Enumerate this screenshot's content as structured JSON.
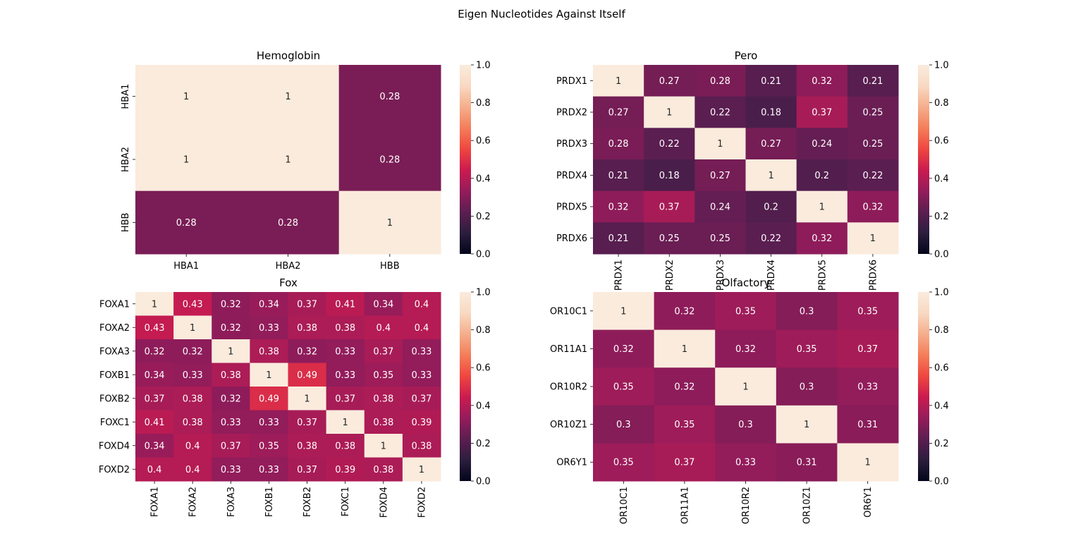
{
  "figure": {
    "suptitle": "Eigen Nucleotides Against Itself",
    "colormap": "rocket",
    "colormap_stops": [
      "#03051a",
      "#2c1e3e",
      "#5c1e51",
      "#951c5b",
      "#cb1b4f",
      "#ef4740",
      "#f47e5a",
      "#f5ae8c",
      "#f8d9c2",
      "#faebdd"
    ]
  },
  "chart_data": [
    {
      "type": "heatmap",
      "title": "Hemoglobin",
      "x_labels": [
        "HBA1",
        "HBA2",
        "HBB"
      ],
      "y_labels": [
        "HBA1",
        "HBA2",
        "HBB"
      ],
      "x_label_rotation": 0,
      "y_label_rotation": -90,
      "values": [
        [
          1,
          1,
          0.28
        ],
        [
          1,
          1,
          0.28
        ],
        [
          0.28,
          0.28,
          1
        ]
      ],
      "annot": true,
      "colorbar": {
        "vmin": 0,
        "vmax": 1,
        "ticks": [
          "0.0",
          "0.2",
          "0.4",
          "0.6",
          "0.8",
          "1.0"
        ]
      }
    },
    {
      "type": "heatmap",
      "title": "Pero",
      "x_labels": [
        "PRDX1",
        "PRDX2",
        "PRDX3",
        "PRDX4",
        "PRDX5",
        "PRDX6"
      ],
      "y_labels": [
        "PRDX1",
        "PRDX2",
        "PRDX3",
        "PRDX4",
        "PRDX5",
        "PRDX6"
      ],
      "x_label_rotation": -90,
      "y_label_rotation": 0,
      "values": [
        [
          1,
          0.27,
          0.28,
          0.21,
          0.32,
          0.21
        ],
        [
          0.27,
          1,
          0.22,
          0.18,
          0.37,
          0.25
        ],
        [
          0.28,
          0.22,
          1,
          0.27,
          0.24,
          0.25
        ],
        [
          0.21,
          0.18,
          0.27,
          1,
          0.2,
          0.22
        ],
        [
          0.32,
          0.37,
          0.24,
          0.2,
          1,
          0.32
        ],
        [
          0.21,
          0.25,
          0.25,
          0.22,
          0.32,
          1
        ]
      ],
      "annot": true,
      "colorbar": {
        "vmin": 0,
        "vmax": 1,
        "ticks": [
          "0.0",
          "0.2",
          "0.4",
          "0.6",
          "0.8",
          "1.0"
        ]
      }
    },
    {
      "type": "heatmap",
      "title": "Fox",
      "x_labels": [
        "FOXA1",
        "FOXA2",
        "FOXA3",
        "FOXB1",
        "FOXB2",
        "FOXC1",
        "FOXD4",
        "FOXD2"
      ],
      "y_labels": [
        "FOXA1",
        "FOXA2",
        "FOXA3",
        "FOXB1",
        "FOXB2",
        "FOXC1",
        "FOXD4",
        "FOXD2"
      ],
      "x_label_rotation": -90,
      "y_label_rotation": 0,
      "values": [
        [
          1,
          0.43,
          0.32,
          0.34,
          0.37,
          0.41,
          0.34,
          0.4
        ],
        [
          0.43,
          1,
          0.32,
          0.33,
          0.38,
          0.38,
          0.4,
          0.4
        ],
        [
          0.32,
          0.32,
          1,
          0.38,
          0.32,
          0.33,
          0.37,
          0.33
        ],
        [
          0.34,
          0.33,
          0.38,
          1,
          0.49,
          0.33,
          0.35,
          0.33
        ],
        [
          0.37,
          0.38,
          0.32,
          0.49,
          1,
          0.37,
          0.38,
          0.37
        ],
        [
          0.41,
          0.38,
          0.33,
          0.33,
          0.37,
          1,
          0.38,
          0.39
        ],
        [
          0.34,
          0.4,
          0.37,
          0.35,
          0.38,
          0.38,
          1,
          0.38
        ],
        [
          0.4,
          0.4,
          0.33,
          0.33,
          0.37,
          0.39,
          0.38,
          1
        ]
      ],
      "annot": true,
      "colorbar": {
        "vmin": 0,
        "vmax": 1,
        "ticks": [
          "0.0",
          "0.2",
          "0.4",
          "0.6",
          "0.8",
          "1.0"
        ]
      }
    },
    {
      "type": "heatmap",
      "title": "Olfactory",
      "x_labels": [
        "OR10C1",
        "OR11A1",
        "OR10R2",
        "OR10Z1",
        "OR6Y1"
      ],
      "y_labels": [
        "OR10C1",
        "OR11A1",
        "OR10R2",
        "OR10Z1",
        "OR6Y1"
      ],
      "x_label_rotation": -90,
      "y_label_rotation": 0,
      "values": [
        [
          1,
          0.32,
          0.35,
          0.3,
          0.35
        ],
        [
          0.32,
          1,
          0.32,
          0.35,
          0.37
        ],
        [
          0.35,
          0.32,
          1,
          0.3,
          0.33
        ],
        [
          0.3,
          0.35,
          0.3,
          1,
          0.31
        ],
        [
          0.35,
          0.37,
          0.33,
          0.31,
          1
        ]
      ],
      "annot": true,
      "colorbar": {
        "vmin": 0,
        "vmax": 1,
        "ticks": [
          "0.0",
          "0.2",
          "0.4",
          "0.6",
          "0.8",
          "1.0"
        ]
      }
    }
  ]
}
